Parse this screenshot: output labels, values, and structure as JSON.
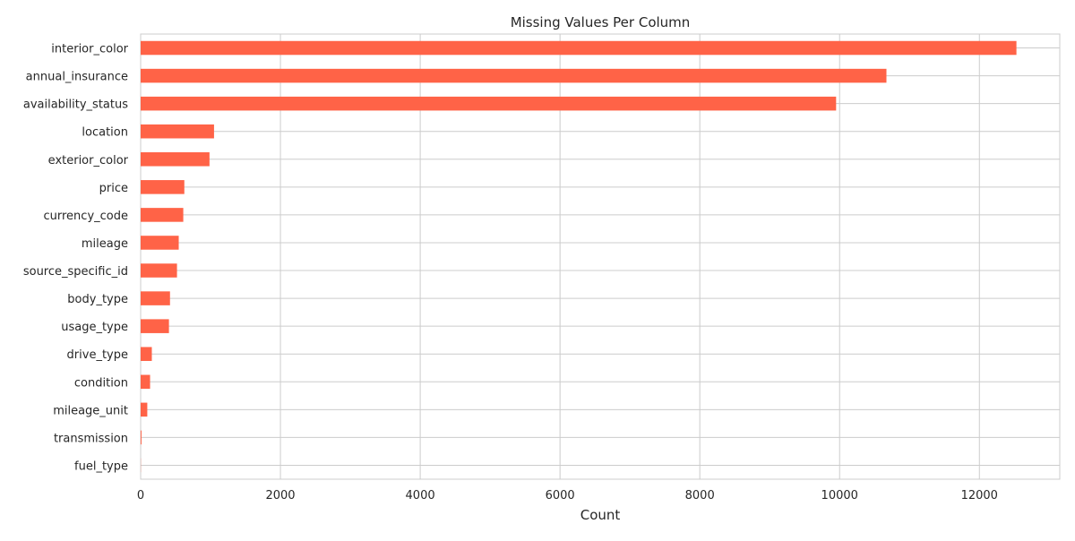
{
  "chart_data": {
    "type": "bar",
    "orientation": "horizontal",
    "title": "Missing Values Per Column",
    "xlabel": "Count",
    "ylabel": "",
    "xlim": [
      0,
      13150
    ],
    "xticks": [
      0,
      2000,
      4000,
      6000,
      8000,
      10000,
      12000
    ],
    "grid": true,
    "bar_color": "#ff6347",
    "categories": [
      "interior_color",
      "annual_insurance",
      "availability_status",
      "location",
      "exterior_color",
      "price",
      "currency_code",
      "mileage",
      "source_specific_id",
      "body_type",
      "usage_type",
      "drive_type",
      "condition",
      "mileage_unit",
      "transmission",
      "fuel_type"
    ],
    "values": [
      12530,
      10670,
      9950,
      1050,
      985,
      625,
      610,
      545,
      520,
      420,
      405,
      160,
      135,
      95,
      12,
      2
    ]
  }
}
